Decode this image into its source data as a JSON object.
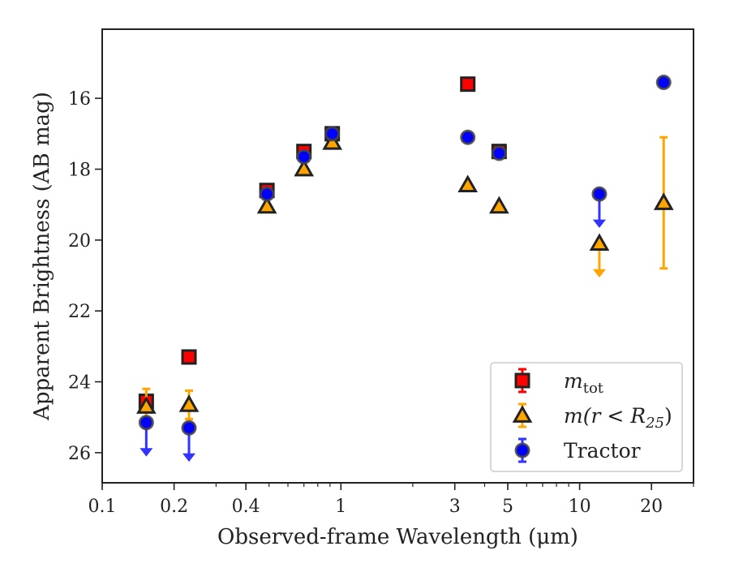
{
  "chart_data": {
    "type": "scatter",
    "xlabel": "Observed-frame Wavelength (μm)",
    "ylabel": "Apparent Brightness (AB mag)",
    "xscale": "log",
    "xlim": [
      0.1,
      30
    ],
    "ylim": [
      26.85,
      14.05
    ],
    "y_inverted": true,
    "grid": false,
    "legend_position": "lower-right",
    "x_ticks": [
      {
        "value": 0.1,
        "label": "0.1"
      },
      {
        "value": 0.2,
        "label": "0.2"
      },
      {
        "value": 0.4,
        "label": "0.4"
      },
      {
        "value": 1,
        "label": "1"
      },
      {
        "value": 3,
        "label": "3"
      },
      {
        "value": 5,
        "label": "5"
      },
      {
        "value": 10,
        "label": "10"
      },
      {
        "value": 20,
        "label": "20"
      }
    ],
    "y_ticks": [
      {
        "value": 16,
        "label": "16"
      },
      {
        "value": 18,
        "label": "18"
      },
      {
        "value": 20,
        "label": "20"
      },
      {
        "value": 22,
        "label": "22"
      },
      {
        "value": 24,
        "label": "24"
      },
      {
        "value": 26,
        "label": "26"
      }
    ],
    "series": [
      {
        "name": "m_tot",
        "legend_label": {
          "base": "m",
          "sub": "tot"
        },
        "marker": "square",
        "face_color": "#ff0000",
        "edge_color": "#222222",
        "error_color": "#ff0000",
        "points": [
          {
            "x": 0.153,
            "y": 24.55,
            "err": 0.1
          },
          {
            "x": 0.231,
            "y": 23.3,
            "err": 0.1
          },
          {
            "x": 0.49,
            "y": 18.6,
            "err": 0.08
          },
          {
            "x": 0.7,
            "y": 17.5,
            "err": 0.08
          },
          {
            "x": 0.92,
            "y": 17.0,
            "err": 0.08
          },
          {
            "x": 3.4,
            "y": 15.6,
            "err": 0.05
          },
          {
            "x": 4.6,
            "y": 17.5,
            "err": 0.05
          }
        ]
      },
      {
        "name": "m(r<R25)",
        "legend_label": {
          "base": "m(r < R",
          "sub": "25",
          "close": ")"
        },
        "marker": "triangle",
        "face_color": "#ffa500",
        "edge_color": "#222222",
        "error_color": "#ffa500",
        "points": [
          {
            "x": 0.153,
            "y": 24.7,
            "err": 0.5
          },
          {
            "x": 0.231,
            "y": 24.65,
            "err": 0.4
          },
          {
            "x": 0.49,
            "y": 19.05
          },
          {
            "x": 0.7,
            "y": 18.0
          },
          {
            "x": 0.92,
            "y": 17.25
          },
          {
            "x": 3.4,
            "y": 18.45
          },
          {
            "x": 4.6,
            "y": 19.05
          },
          {
            "x": 12.1,
            "y": 20.1,
            "upper_limit": true
          },
          {
            "x": 22.5,
            "y": 18.95,
            "err": 1.85
          }
        ]
      },
      {
        "name": "Tractor",
        "legend_label": {
          "base": "Tractor"
        },
        "marker": "circle",
        "face_color": "#0000ff",
        "edge_color": "#444444",
        "error_color": "#3333ff",
        "points": [
          {
            "x": 0.153,
            "y": 25.15,
            "upper_limit": true
          },
          {
            "x": 0.231,
            "y": 25.3,
            "upper_limit": true
          },
          {
            "x": 0.49,
            "y": 18.7
          },
          {
            "x": 0.7,
            "y": 17.65
          },
          {
            "x": 0.92,
            "y": 17.0
          },
          {
            "x": 3.4,
            "y": 17.1
          },
          {
            "x": 4.6,
            "y": 17.55
          },
          {
            "x": 12.1,
            "y": 18.7,
            "upper_limit": true
          },
          {
            "x": 22.5,
            "y": 15.55,
            "err": 0.05
          }
        ]
      }
    ]
  }
}
